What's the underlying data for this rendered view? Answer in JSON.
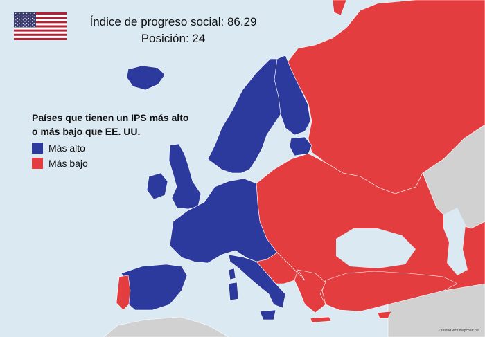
{
  "header": {
    "index_label": "Índice de progreso social: ",
    "index_value": "86.29",
    "rank_label": "Posición: ",
    "rank_value": "24"
  },
  "legend": {
    "title": "Países que tienen un IPS más alto o más bajo que EE. UU.",
    "items": [
      {
        "label": "Más alto",
        "color": "#2b3a9c"
      },
      {
        "label": "Más bajo",
        "color": "#e43d40"
      }
    ]
  },
  "colors": {
    "sea": "#dbe9f2",
    "higher": "#2b3a9c",
    "lower": "#e43d40",
    "outside": "#d1d1d1",
    "border": "#ffffff"
  },
  "flag": {
    "icon": "usa-flag-icon"
  },
  "credit": "Created with mapchart.net"
}
